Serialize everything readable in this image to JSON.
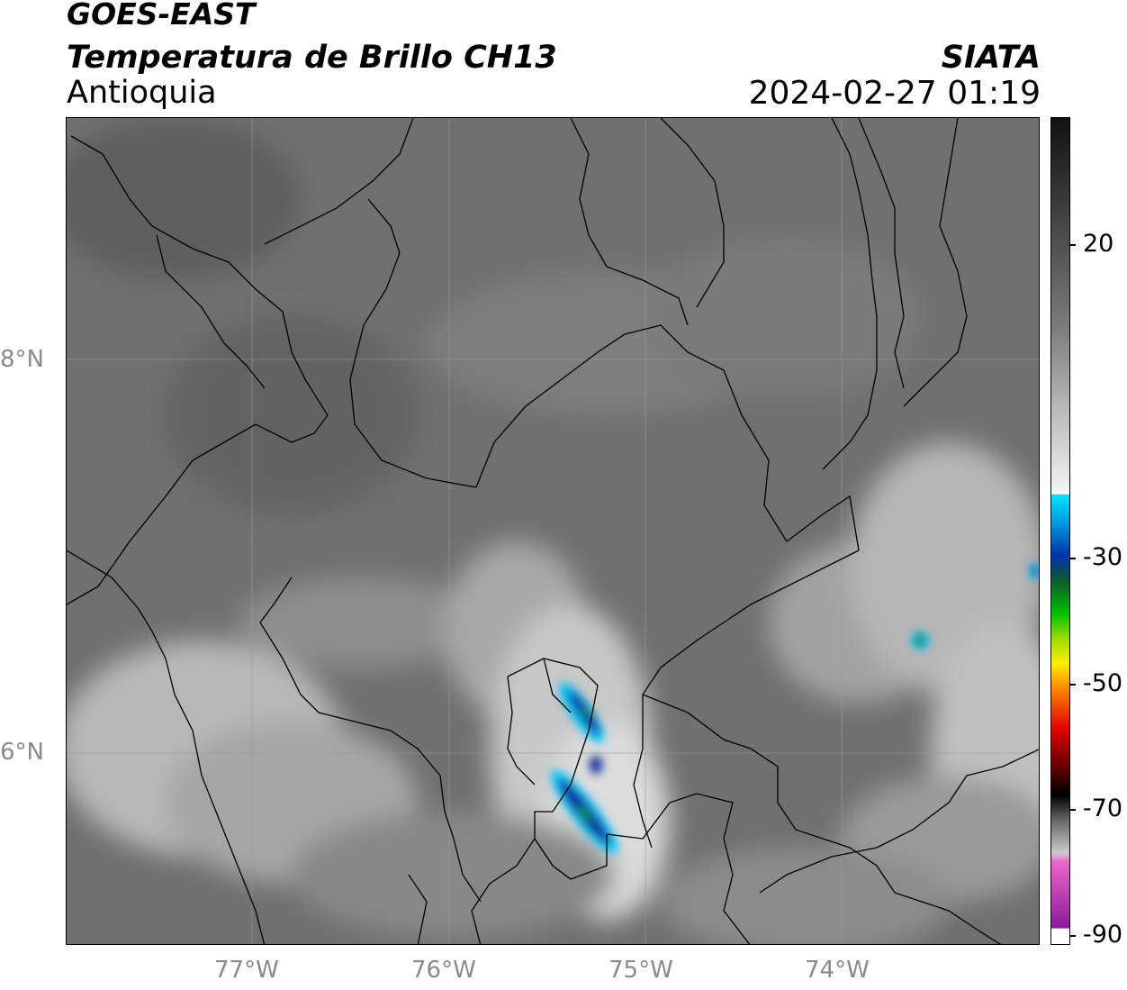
{
  "header": {
    "satellite": "GOES-EAST",
    "product": "Temperatura de Brillo CH13",
    "region": "Antioquia",
    "organization": "SIATA",
    "timestamp": "2024-02-27 01:19"
  },
  "axes": {
    "lat_labels": [
      "8°N",
      "6°N"
    ],
    "lon_labels": [
      "77°W",
      "76°W",
      "75°W",
      "74°W"
    ]
  },
  "colorbar": {
    "labels": [
      "20",
      "-30",
      "-50",
      "-70",
      "-90"
    ],
    "colors": {
      "warm_top": "#111111",
      "neutral": "#f2f2f2",
      "cyan": "#00e5ff",
      "blue": "#0033aa",
      "green": "#00c000",
      "yellow": "#ffee00",
      "orange": "#ff8800",
      "red": "#e00000",
      "pink": "#ee66cc",
      "purple": "#8a1a9a"
    }
  },
  "colors": {
    "background_cloudfree": "#6e6e6e",
    "cloud_bright": "#d0d0d0",
    "border_lines": "#000000",
    "grid": "#9a9a9a"
  }
}
